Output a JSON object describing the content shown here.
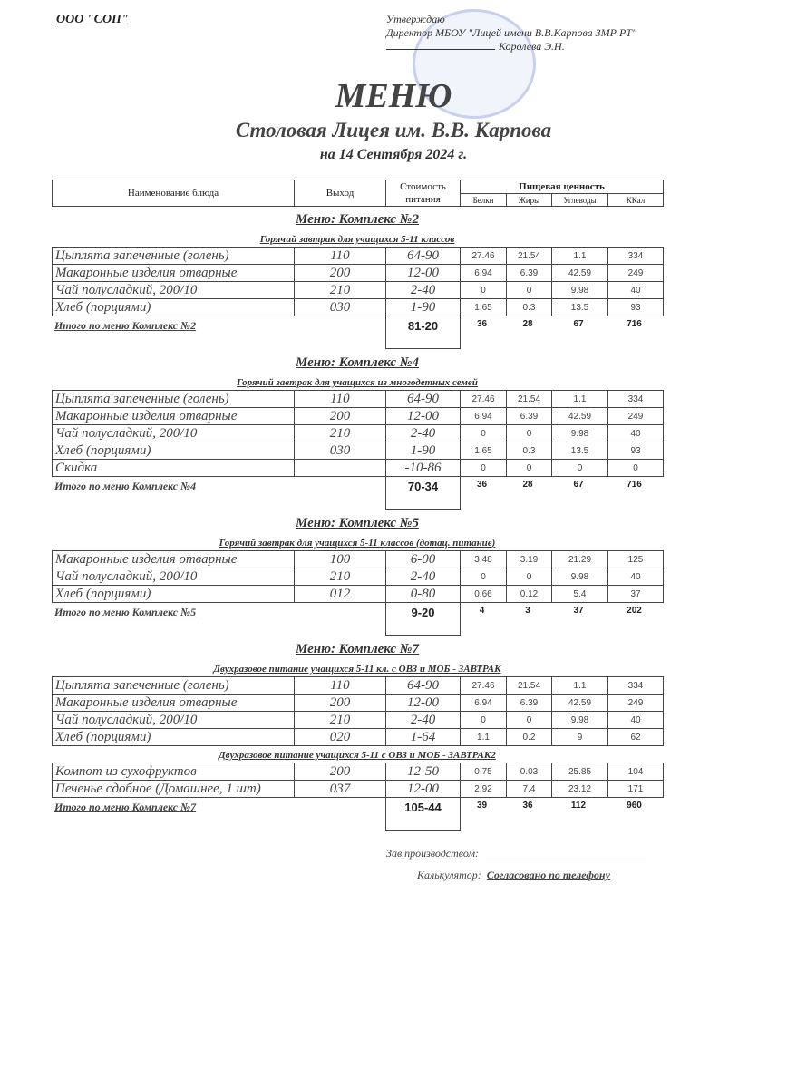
{
  "header": {
    "org": "ООО \"СОП\"",
    "approve": "Утверждаю",
    "director": "Директор МБОУ \"Лицей имени В.В.Карпова ЗМР РТ\"",
    "signer": "Королева Э.Н."
  },
  "title": "МЕНЮ",
  "subtitle": "Столовая Лицея им. В.В. Карпова",
  "date": "на 14 Сентября 2024 г.",
  "columns": {
    "name": "Наименование блюда",
    "output": "Выход",
    "cost": "Стоимость питания",
    "nutrition": "Пищевая ценность",
    "protein": "Белки",
    "fat": "Жиры",
    "carbs": "Углеводы",
    "kcal": "ККал"
  },
  "sections": [
    {
      "title": "Меню: Комплекс №2",
      "groups": [
        {
          "subtitle": "Горячий завтрак для учащихся 5-11 классов",
          "rows": [
            [
              "Цыплята запеченные (голень)",
              "110",
              "64-90",
              "27.46",
              "21.54",
              "1.1",
              "334"
            ],
            [
              "Макаронные изделия отварные",
              "200",
              "12-00",
              "6.94",
              "6.39",
              "42.59",
              "249"
            ],
            [
              "Чай полусладкий, 200/10",
              "210",
              "2-40",
              "0",
              "0",
              "9.98",
              "40"
            ],
            [
              "Хлеб (порциями)",
              "030",
              "1-90",
              "1.65",
              "0.3",
              "13.5",
              "93"
            ]
          ]
        }
      ],
      "total": [
        "Итого по меню Комплекс №2",
        "81-20",
        "36",
        "28",
        "67",
        "716"
      ]
    },
    {
      "title": "Меню: Комплекс №4",
      "groups": [
        {
          "subtitle": "Горячий завтрак для учащихся из многодетных семей",
          "rows": [
            [
              "Цыплята запеченные (голень)",
              "110",
              "64-90",
              "27.46",
              "21.54",
              "1.1",
              "334"
            ],
            [
              "Макаронные изделия отварные",
              "200",
              "12-00",
              "6.94",
              "6.39",
              "42.59",
              "249"
            ],
            [
              "Чай полусладкий, 200/10",
              "210",
              "2-40",
              "0",
              "0",
              "9.98",
              "40"
            ],
            [
              "Хлеб (порциями)",
              "030",
              "1-90",
              "1.65",
              "0.3",
              "13.5",
              "93"
            ],
            [
              "Скидка",
              "",
              "-10-86",
              "0",
              "0",
              "0",
              "0"
            ]
          ]
        }
      ],
      "total": [
        "Итого по меню Комплекс №4",
        "70-34",
        "36",
        "28",
        "67",
        "716"
      ]
    },
    {
      "title": "Меню: Комплекс №5",
      "groups": [
        {
          "subtitle": "Горячий завтрак для учащихся 5-11 классов (дотац. питание)",
          "rows": [
            [
              "Макаронные изделия отварные",
              "100",
              "6-00",
              "3.48",
              "3.19",
              "21.29",
              "125"
            ],
            [
              "Чай полусладкий, 200/10",
              "210",
              "2-40",
              "0",
              "0",
              "9.98",
              "40"
            ],
            [
              "Хлеб (порциями)",
              "012",
              "0-80",
              "0.66",
              "0.12",
              "5.4",
              "37"
            ]
          ]
        }
      ],
      "total": [
        "Итого по меню Комплекс №5",
        "9-20",
        "4",
        "3",
        "37",
        "202"
      ]
    },
    {
      "title": "Меню: Комплекс №7",
      "groups": [
        {
          "subtitle": "Двухразовое питание учащихся 5-11 кл. с  ОВЗ и МОБ - ЗАВТРАК",
          "rows": [
            [
              "Цыплята запеченные (голень)",
              "110",
              "64-90",
              "27.46",
              "21.54",
              "1.1",
              "334"
            ],
            [
              "Макаронные изделия отварные",
              "200",
              "12-00",
              "6.94",
              "6.39",
              "42.59",
              "249"
            ],
            [
              "Чай полусладкий, 200/10",
              "210",
              "2-40",
              "0",
              "0",
              "9.98",
              "40"
            ],
            [
              "Хлеб (порциями)",
              "020",
              "1-64",
              "1.1",
              "0.2",
              "9",
              "62"
            ]
          ]
        },
        {
          "subtitle": "Двухразовое питание учащихся 5-11 с ОВЗ и МОБ - ЗАВТРАК2",
          "rows": [
            [
              "Компот из сухофруктов",
              "200",
              "12-50",
              "0.75",
              "0.03",
              "25.85",
              "104"
            ],
            [
              "Печенье сдобное (Домашнее, 1 шт)",
              "037",
              "12-00",
              "2.92",
              "7.4",
              "23.12",
              "171"
            ]
          ]
        }
      ],
      "total": [
        "Итого по меню Комплекс №7",
        "105-44",
        "39",
        "36",
        "112",
        "960"
      ]
    }
  ],
  "footer": {
    "production_label": "Зав.производством:",
    "calculator_label": "Калькулятор:",
    "calculator_value": "Согласовано по телефону"
  },
  "colors": {
    "ink": "#222222",
    "stamp": "#8c9be0"
  }
}
